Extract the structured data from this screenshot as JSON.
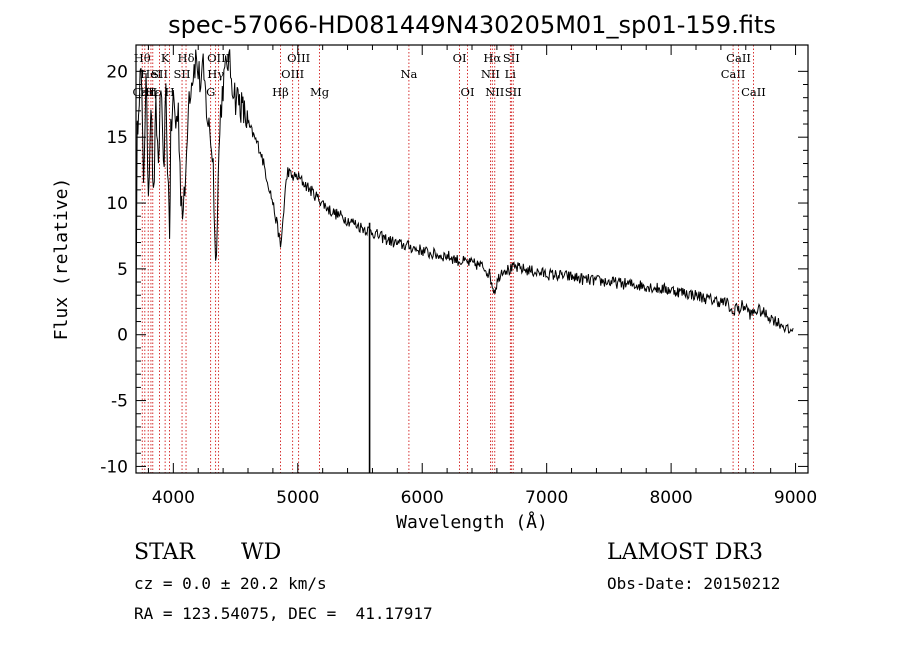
{
  "chart_data": {
    "type": "line",
    "title": "spec-57066-HD081449N430205M01_sp01-159.fits",
    "xlabel": "Wavelength (Å)",
    "ylabel": "Flux (relative)",
    "xlim": [
      3700,
      9100
    ],
    "ylim": [
      -10.5,
      22
    ],
    "xticks": [
      4000,
      5000,
      6000,
      7000,
      8000,
      9000
    ],
    "yticks": [
      -10,
      -5,
      0,
      5,
      10,
      15,
      20
    ],
    "series": [
      {
        "name": "spectrum",
        "x": [
          3700,
          3710,
          3720,
          3740,
          3760,
          3780,
          3800,
          3820,
          3840,
          3860,
          3880,
          3900,
          3920,
          3940,
          3960,
          3970,
          3980,
          4000,
          4020,
          4040,
          4060,
          4080,
          4100,
          4120,
          4140,
          4160,
          4180,
          4200,
          4220,
          4240,
          4260,
          4280,
          4300,
          4320,
          4340,
          4360,
          4380,
          4400,
          4420,
          4440,
          4460,
          4480,
          4500,
          4520,
          4560,
          4600,
          4650,
          4700,
          4750,
          4800,
          4830,
          4850,
          4861,
          4875,
          4900,
          4920,
          4950,
          5000,
          5050,
          5100,
          5150,
          5200,
          5250,
          5300,
          5350,
          5400,
          5450,
          5500,
          5550,
          5600,
          5650,
          5700,
          5750,
          5800,
          5850,
          5900,
          5950,
          6000,
          6050,
          6100,
          6150,
          6200,
          6250,
          6300,
          6350,
          6400,
          6450,
          6500,
          6540,
          6563,
          6580,
          6620,
          6650,
          6700,
          6750,
          6800,
          6850,
          6900,
          6950,
          7000,
          7100,
          7200,
          7300,
          7400,
          7500,
          7600,
          7700,
          7800,
          7900,
          8000,
          8100,
          8200,
          8300,
          8400,
          8450,
          8498,
          8520,
          8542,
          8570,
          8600,
          8640,
          8662,
          8700,
          8750,
          8800,
          8850,
          8900,
          8950,
          8980
        ],
        "y": [
          0,
          15,
          18,
          20,
          12,
          19,
          11,
          18,
          10,
          17,
          13,
          19,
          12,
          18,
          11,
          8,
          15,
          18,
          16,
          17,
          11,
          9,
          12,
          18,
          19,
          20,
          21,
          20,
          19,
          20,
          18,
          16,
          15,
          13,
          5,
          12,
          17,
          19,
          20,
          21,
          20,
          19,
          18,
          18,
          17,
          16,
          15,
          14,
          12,
          10,
          8.5,
          7.5,
          6.5,
          8,
          11,
          12.5,
          12,
          12,
          11.5,
          11,
          10.5,
          10,
          9.5,
          9.2,
          9,
          8.7,
          8.5,
          8.2,
          8,
          7.8,
          7.5,
          7.3,
          7.1,
          6.9,
          6.8,
          6.7,
          6.5,
          6.4,
          6.2,
          6.1,
          6,
          6,
          5.8,
          5.6,
          5.5,
          5.4,
          5.3,
          5.1,
          4.6,
          3.8,
          3.3,
          4.5,
          5,
          4.9,
          5.1,
          5,
          4.9,
          4.8,
          4.7,
          4.6,
          4.5,
          4.4,
          4.2,
          4.1,
          4,
          3.9,
          3.8,
          3.7,
          3.5,
          3.4,
          3.2,
          3,
          2.7,
          2.5,
          2.4,
          1.5,
          2.3,
          1.8,
          2.2,
          2.1,
          1.5,
          1.7,
          1.9,
          1.6,
          1.3,
          1,
          0.7,
          0.2,
          0.5
        ]
      }
    ],
    "spike": {
      "x": 5577,
      "y_low": -10.5,
      "y_high": 8.5
    },
    "line_markers": [
      {
        "x": 3750,
        "label": "Hθ",
        "row": 1
      },
      {
        "x": 3771,
        "label": "CaII",
        "row": 3
      },
      {
        "x": 3798,
        "label": "Hη",
        "row": 3
      },
      {
        "x": 3820,
        "label": "HeI",
        "row": 2
      },
      {
        "x": 3835,
        "label": "Hε",
        "row": 3
      },
      {
        "x": 3889,
        "label": "SII",
        "row": 2
      },
      {
        "x": 3934,
        "label": "K",
        "row": 1
      },
      {
        "x": 3970,
        "label": "H",
        "row": 3
      },
      {
        "x": 4070,
        "label": "SII",
        "row": 2
      },
      {
        "x": 4102,
        "label": "Hδ",
        "row": 1
      },
      {
        "x": 4300,
        "label": "G",
        "row": 3
      },
      {
        "x": 4340,
        "label": "Hγ",
        "row": 2
      },
      {
        "x": 4364,
        "label": "OIII",
        "row": 1
      },
      {
        "x": 4861,
        "label": "Hβ",
        "row": 3
      },
      {
        "x": 4959,
        "label": "OIII",
        "row": 2
      },
      {
        "x": 5007,
        "label": "OIII",
        "row": 1
      },
      {
        "x": 5175,
        "label": "Mg",
        "row": 3
      },
      {
        "x": 5893,
        "label": "Na",
        "row": 2
      },
      {
        "x": 6300,
        "label": "OI",
        "row": 1
      },
      {
        "x": 6364,
        "label": "OI",
        "row": 3
      },
      {
        "x": 6548,
        "label": "NII",
        "row": 2
      },
      {
        "x": 6563,
        "label": "Hα",
        "row": 1
      },
      {
        "x": 6583,
        "label": "NII",
        "row": 3
      },
      {
        "x": 6708,
        "label": "Li",
        "row": 2
      },
      {
        "x": 6716,
        "label": "SII",
        "row": 1
      },
      {
        "x": 6731,
        "label": "SII",
        "row": 3
      },
      {
        "x": 8498,
        "label": "CaII",
        "row": 2
      },
      {
        "x": 8542,
        "label": "CaII",
        "row": 1
      },
      {
        "x": 8662,
        "label": "CaII",
        "row": 3
      }
    ]
  },
  "info": {
    "class_label": "STAR",
    "subclass_label": "WD",
    "cz_line": "cz = 0.0 ± 20.2 km/s",
    "radec_line": "RA = 123.54075, DEC =  41.17917",
    "survey": "LAMOST DR3",
    "obs_date": "Obs-Date: 20150212"
  }
}
